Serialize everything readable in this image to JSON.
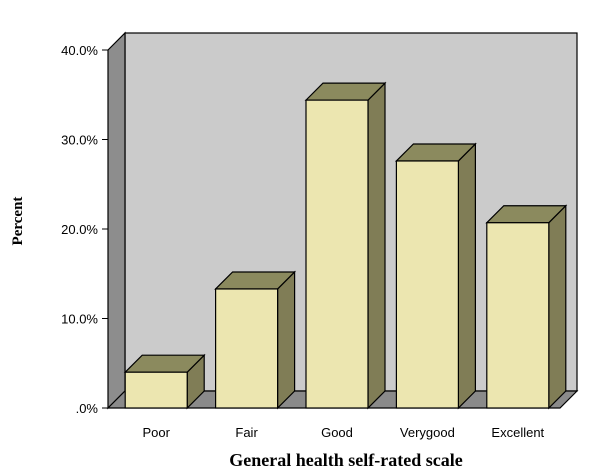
{
  "chart_data": {
    "type": "bar",
    "title": "",
    "xlabel": "General health self-rated scale",
    "ylabel": "Percent",
    "categories": [
      "Poor",
      "Fair",
      "Good",
      "Verygood",
      "Excellent"
    ],
    "values": [
      4.0,
      13.3,
      34.4,
      27.6,
      20.7
    ],
    "ylim": [
      0,
      40
    ],
    "yticks": [
      ".0%",
      "10.0%",
      "20.0%",
      "30.0%",
      "40.0%"
    ],
    "grid": false,
    "legend": "none",
    "style": "3d",
    "colors": {
      "bar_front": "#ece6b0",
      "bar_top": "#8b8a5e",
      "bar_side": "#807d56",
      "wall": "#cbcbcb",
      "floor": "#8a8a8a",
      "side_wall": "#8d8d8d",
      "outline": "#000000"
    }
  }
}
